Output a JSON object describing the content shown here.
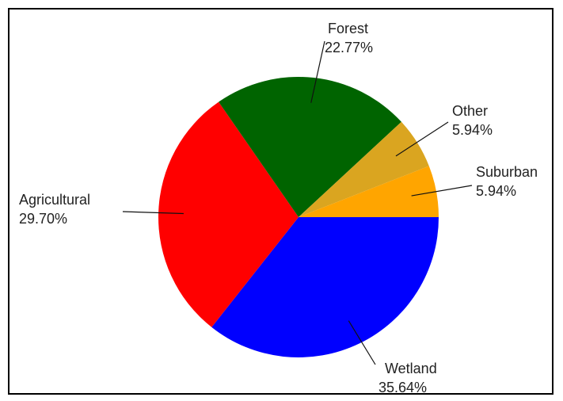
{
  "chart_data": {
    "type": "pie",
    "title": "",
    "slices": [
      {
        "label": "Wetland",
        "value": 35.64,
        "value_label": "35.64%",
        "color": "#0000ff"
      },
      {
        "label": "Agricultural",
        "value": 29.7,
        "value_label": "29.70%",
        "color": "#ff0000"
      },
      {
        "label": "Forest",
        "value": 22.77,
        "value_label": "22.77%",
        "color": "#006400"
      },
      {
        "label": "Other",
        "value": 5.94,
        "value_label": "5.94%",
        "color": "#daa520"
      },
      {
        "label": "Suburban",
        "value": 5.94,
        "value_label": "5.94%",
        "color": "#ffa500"
      }
    ],
    "start_position": "3 o'clock",
    "direction": "clockwise",
    "legend": "none",
    "labels": "outside with leader lines"
  }
}
